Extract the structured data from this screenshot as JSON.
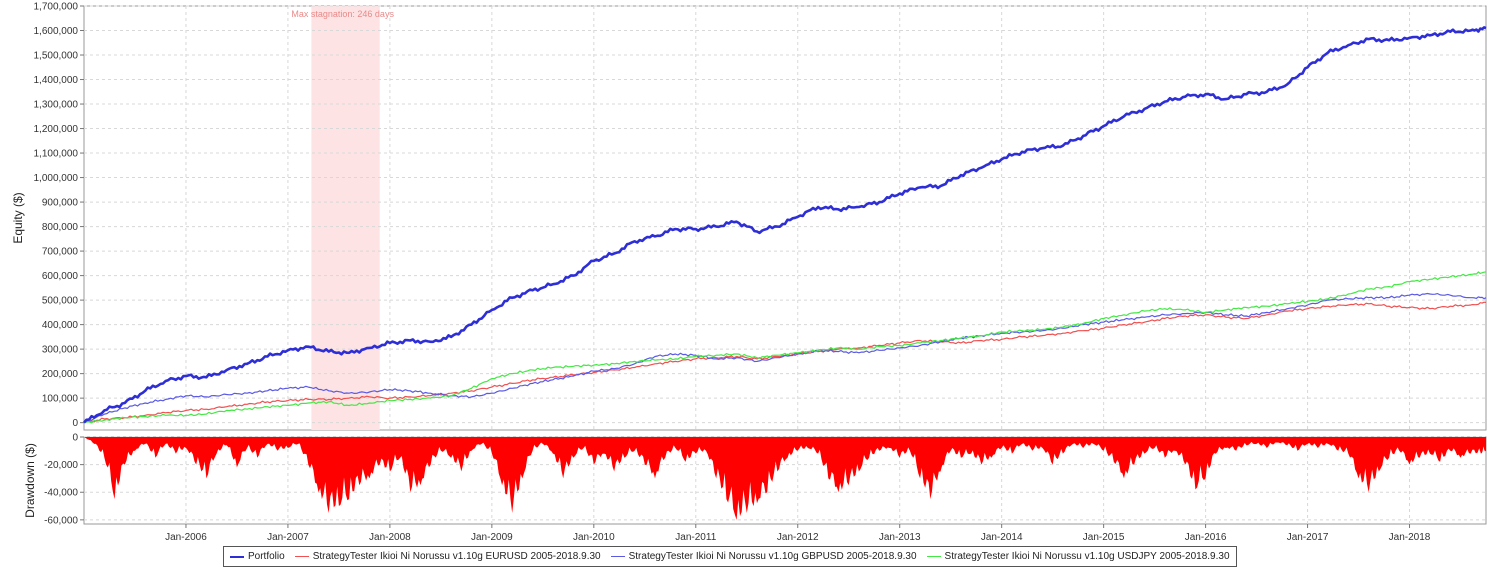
{
  "chart_data": [
    {
      "type": "line",
      "ylabel": "Equity ($)",
      "ylim": [
        -30000,
        1700000
      ],
      "yticks": [
        0,
        100000,
        200000,
        300000,
        400000,
        500000,
        600000,
        700000,
        800000,
        900000,
        1000000,
        1100000,
        1200000,
        1300000,
        1400000,
        1500000,
        1600000,
        1700000
      ],
      "ytick_labels": [
        "0",
        "100,000",
        "200,000",
        "300,000",
        "400,000",
        "500,000",
        "600,000",
        "700,000",
        "800,000",
        "900,000",
        "1,000,000",
        "1,100,000",
        "1,200,000",
        "1,300,000",
        "1,400,000",
        "1,500,000",
        "1,600,000",
        "1,700,000"
      ],
      "grid": true,
      "annotation": {
        "text": "Max stagnation: 246 days",
        "x_start": 2007.23,
        "x_end": 2007.9,
        "color": "#fde3e3"
      },
      "x": [
        2005.0,
        2005.2,
        2005.4,
        2005.6,
        2005.8,
        2006.0,
        2006.2,
        2006.4,
        2006.6,
        2006.8,
        2007.0,
        2007.2,
        2007.4,
        2007.6,
        2007.8,
        2008.0,
        2008.2,
        2008.4,
        2008.6,
        2008.8,
        2009.0,
        2009.2,
        2009.4,
        2009.6,
        2009.8,
        2010.0,
        2010.2,
        2010.4,
        2010.6,
        2010.8,
        2011.0,
        2011.2,
        2011.4,
        2011.6,
        2011.8,
        2012.0,
        2012.2,
        2012.4,
        2012.6,
        2012.8,
        2013.0,
        2013.2,
        2013.4,
        2013.6,
        2013.8,
        2014.0,
        2014.2,
        2014.4,
        2014.6,
        2014.8,
        2015.0,
        2015.2,
        2015.4,
        2015.6,
        2015.8,
        2016.0,
        2016.2,
        2016.4,
        2016.6,
        2016.8,
        2017.0,
        2017.2,
        2017.4,
        2017.6,
        2017.8,
        2018.0,
        2018.2,
        2018.4,
        2018.6,
        2018.75
      ],
      "series": [
        {
          "name": "Portfolio",
          "color": "#2e2ed6",
          "width": 2.6,
          "values": [
            0,
            50000,
            80000,
            130000,
            170000,
            190000,
            185000,
            215000,
            240000,
            270000,
            295000,
            310000,
            290000,
            285000,
            305000,
            325000,
            335000,
            330000,
            350000,
            400000,
            460000,
            510000,
            540000,
            565000,
            600000,
            660000,
            690000,
            740000,
            760000,
            790000,
            790000,
            800000,
            820000,
            780000,
            800000,
            840000,
            880000,
            870000,
            880000,
            900000,
            935000,
            960000,
            965000,
            1010000,
            1040000,
            1075000,
            1105000,
            1120000,
            1130000,
            1170000,
            1210000,
            1250000,
            1280000,
            1310000,
            1330000,
            1340000,
            1320000,
            1340000,
            1350000,
            1380000,
            1450000,
            1510000,
            1540000,
            1565000,
            1560000,
            1570000,
            1580000,
            1595000,
            1600000,
            1610000
          ]
        },
        {
          "name": "StrategyTester Ikioi Ni Norussu v1.10g EURUSD 2005-2018.9.30",
          "color": "#f05050",
          "width": 1.2,
          "values": [
            0,
            15000,
            20000,
            30000,
            40000,
            50000,
            55000,
            65000,
            75000,
            85000,
            90000,
            95000,
            95000,
            100000,
            105000,
            100000,
            105000,
            110000,
            120000,
            130000,
            145000,
            160000,
            175000,
            185000,
            195000,
            205000,
            215000,
            225000,
            240000,
            250000,
            260000,
            265000,
            270000,
            260000,
            270000,
            280000,
            290000,
            300000,
            305000,
            315000,
            325000,
            335000,
            330000,
            325000,
            335000,
            340000,
            350000,
            355000,
            365000,
            375000,
            385000,
            400000,
            410000,
            425000,
            435000,
            440000,
            430000,
            425000,
            440000,
            455000,
            465000,
            475000,
            480000,
            485000,
            475000,
            470000,
            465000,
            475000,
            480000,
            490000
          ]
        },
        {
          "name": "StrategyTester Ikioi Ni Norussu v1.10g GBPUSD 2005-2018.9.30",
          "color": "#5a5ae6",
          "width": 1.2,
          "values": [
            0,
            35000,
            60000,
            80000,
            95000,
            110000,
            105000,
            115000,
            120000,
            130000,
            140000,
            145000,
            130000,
            120000,
            125000,
            135000,
            130000,
            120000,
            110000,
            105000,
            120000,
            140000,
            160000,
            175000,
            190000,
            210000,
            220000,
            240000,
            270000,
            280000,
            275000,
            260000,
            265000,
            250000,
            265000,
            280000,
            295000,
            290000,
            285000,
            295000,
            305000,
            315000,
            330000,
            345000,
            355000,
            365000,
            370000,
            375000,
            385000,
            400000,
            410000,
            420000,
            430000,
            440000,
            445000,
            450000,
            440000,
            435000,
            450000,
            465000,
            480000,
            500000,
            505000,
            510000,
            510000,
            520000,
            525000,
            520000,
            510000,
            510000
          ]
        },
        {
          "name": "StrategyTester Ikioi Ni Norussu v1.10g USDJPY 2005-2018.9.30",
          "color": "#44e844",
          "width": 1.2,
          "values": [
            0,
            10000,
            20000,
            25000,
            30000,
            30000,
            35000,
            50000,
            55000,
            65000,
            70000,
            80000,
            85000,
            70000,
            80000,
            90000,
            95000,
            100000,
            110000,
            140000,
            180000,
            200000,
            215000,
            225000,
            230000,
            235000,
            240000,
            250000,
            255000,
            260000,
            270000,
            275000,
            280000,
            265000,
            275000,
            285000,
            295000,
            305000,
            300000,
            310000,
            315000,
            325000,
            335000,
            345000,
            355000,
            370000,
            375000,
            380000,
            390000,
            405000,
            425000,
            440000,
            455000,
            465000,
            460000,
            450000,
            460000,
            470000,
            475000,
            485000,
            495000,
            505000,
            525000,
            545000,
            555000,
            575000,
            585000,
            595000,
            605000,
            615000
          ]
        }
      ]
    },
    {
      "type": "area",
      "ylabel": "Drawdown ($)",
      "ylim": [
        -63000,
        0
      ],
      "yticks": [
        0,
        -20000,
        -40000,
        -60000
      ],
      "ytick_labels": [
        "0",
        "-20,000",
        "-40,000",
        "-60,000"
      ],
      "xtick_labels": [
        "Jan-2006",
        "Jan-2007",
        "Jan-2008",
        "Jan-2009",
        "Jan-2010",
        "Jan-2011",
        "Jan-2012",
        "Jan-2013",
        "Jan-2014",
        "Jan-2015",
        "Jan-2016",
        "Jan-2017",
        "Jan-2018"
      ],
      "xticks": [
        2006.0,
        2007.0,
        2008.0,
        2009.0,
        2010.0,
        2011.0,
        2012.0,
        2013.0,
        2014.0,
        2015.0,
        2016.0,
        2017.0,
        2018.0
      ],
      "xlim": [
        2005.0,
        2018.75
      ],
      "grid": true,
      "color": "#ff0000",
      "x": [
        2005.0,
        2005.1,
        2005.2,
        2005.3,
        2005.4,
        2005.5,
        2005.6,
        2005.7,
        2005.8,
        2005.9,
        2006.0,
        2006.1,
        2006.2,
        2006.3,
        2006.4,
        2006.5,
        2006.6,
        2006.7,
        2006.8,
        2006.9,
        2007.0,
        2007.1,
        2007.2,
        2007.3,
        2007.4,
        2007.5,
        2007.6,
        2007.7,
        2007.8,
        2007.9,
        2008.0,
        2008.1,
        2008.2,
        2008.3,
        2008.4,
        2008.5,
        2008.6,
        2008.7,
        2008.8,
        2008.9,
        2009.0,
        2009.1,
        2009.2,
        2009.3,
        2009.4,
        2009.5,
        2009.6,
        2009.7,
        2009.8,
        2009.9,
        2010.0,
        2010.1,
        2010.2,
        2010.3,
        2010.4,
        2010.5,
        2010.6,
        2010.7,
        2010.8,
        2010.9,
        2011.0,
        2011.1,
        2011.2,
        2011.3,
        2011.4,
        2011.5,
        2011.6,
        2011.7,
        2011.8,
        2011.9,
        2012.0,
        2012.1,
        2012.2,
        2012.3,
        2012.4,
        2012.5,
        2012.6,
        2012.7,
        2012.8,
        2012.9,
        2013.0,
        2013.1,
        2013.2,
        2013.3,
        2013.4,
        2013.5,
        2013.6,
        2013.7,
        2013.8,
        2013.9,
        2014.0,
        2014.1,
        2014.2,
        2014.3,
        2014.4,
        2014.5,
        2014.6,
        2014.7,
        2014.8,
        2014.9,
        2015.0,
        2015.1,
        2015.2,
        2015.3,
        2015.4,
        2015.5,
        2015.6,
        2015.7,
        2015.8,
        2015.9,
        2016.0,
        2016.1,
        2016.2,
        2016.3,
        2016.4,
        2016.5,
        2016.6,
        2016.7,
        2016.8,
        2016.9,
        2017.0,
        2017.1,
        2017.2,
        2017.3,
        2017.4,
        2017.5,
        2017.6,
        2017.7,
        2017.8,
        2017.9,
        2018.0,
        2018.1,
        2018.2,
        2018.3,
        2018.4,
        2018.5,
        2018.6,
        2018.7,
        2018.75
      ],
      "values": [
        0,
        -5000,
        -15000,
        -45000,
        -20000,
        -10000,
        -5000,
        -15000,
        -5000,
        -12000,
        -8000,
        -20000,
        -30000,
        -12000,
        -6000,
        -22000,
        -8000,
        -15000,
        -5000,
        -10000,
        -8000,
        -5000,
        -20000,
        -40000,
        -55000,
        -50000,
        -45000,
        -35000,
        -30000,
        -20000,
        -25000,
        -15000,
        -40000,
        -35000,
        -20000,
        -10000,
        -15000,
        -25000,
        -10000,
        -5000,
        -12000,
        -35000,
        -55000,
        -30000,
        -10000,
        -5000,
        -12000,
        -30000,
        -15000,
        -8000,
        -20000,
        -12000,
        -25000,
        -15000,
        -10000,
        -20000,
        -30000,
        -15000,
        -8000,
        -18000,
        -12000,
        -10000,
        -30000,
        -45000,
        -60000,
        -55000,
        -48000,
        -40000,
        -25000,
        -15000,
        -10000,
        -8000,
        -12000,
        -30000,
        -40000,
        -35000,
        -25000,
        -15000,
        -10000,
        -8000,
        -15000,
        -10000,
        -30000,
        -45000,
        -25000,
        -10000,
        -15000,
        -12000,
        -20000,
        -15000,
        -8000,
        -12000,
        -5000,
        -10000,
        -8000,
        -20000,
        -12000,
        -5000,
        -8000,
        -5000,
        -10000,
        -18000,
        -30000,
        -20000,
        -12000,
        -8000,
        -15000,
        -10000,
        -20000,
        -38000,
        -30000,
        -12000,
        -8000,
        -10000,
        -6000,
        -5000,
        -8000,
        -4000,
        -6000,
        -10000,
        -5000,
        -8000,
        -5000,
        -10000,
        -12000,
        -30000,
        -40000,
        -25000,
        -15000,
        -10000,
        -20000,
        -15000,
        -12000,
        -18000,
        -10000,
        -15000,
        -12000,
        -12000,
        -10000
      ]
    }
  ]
}
